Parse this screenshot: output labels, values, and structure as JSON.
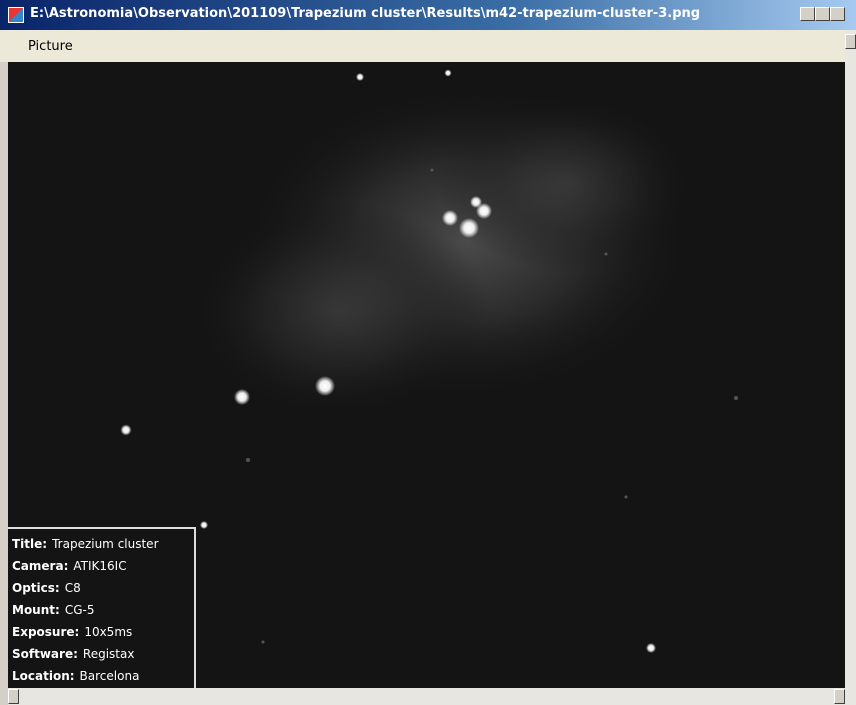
{
  "window": {
    "title": "E:\\Astronomia\\Observation\\201109\\Trapezium cluster\\Results\\m42-trapezium-cluster-3.png"
  },
  "menu": [
    "Picture"
  ],
  "info": [
    {
      "label": "Title:",
      "value": "Trapezium cluster"
    },
    {
      "label": "Camera:",
      "value": "ATIK16IC"
    },
    {
      "label": "Optics:",
      "value": "C8"
    },
    {
      "label": "Mount:",
      "value": "CG-5"
    },
    {
      "label": "Exposure:",
      "value": "10x5ms"
    },
    {
      "label": "Software:",
      "value": "Registax"
    },
    {
      "label": "Location:",
      "value": "Barcelona"
    }
  ]
}
